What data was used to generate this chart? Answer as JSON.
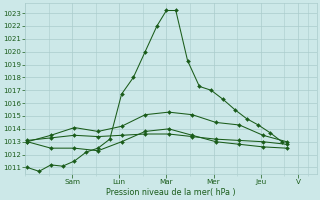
{
  "background_color": "#cce8e8",
  "grid_color": "#aacccc",
  "line_color": "#1a5c1a",
  "ylabel": "Pression niveau de la mer( hPa )",
  "ylim": [
    1010.5,
    1023.8
  ],
  "yticks": [
    1011,
    1012,
    1013,
    1014,
    1015,
    1016,
    1017,
    1018,
    1019,
    1020,
    1021,
    1022,
    1023
  ],
  "day_tick_positions": [
    1.0,
    2.0,
    3.0,
    4.0,
    5.0,
    5.8
  ],
  "day_labels": [
    "Sam",
    "Lun",
    "Mar",
    "Mer",
    "Jeu",
    "V"
  ],
  "xlim": [
    0.0,
    6.2
  ],
  "series1_x": [
    0.05,
    0.3,
    0.55,
    0.8,
    1.05,
    1.3,
    1.55,
    1.8,
    2.05,
    2.3,
    2.55,
    2.8,
    3.0,
    3.2,
    3.45,
    3.7,
    3.95,
    4.2,
    4.45,
    4.7,
    4.95,
    5.2,
    5.45
  ],
  "series1_y": [
    1011.0,
    1010.7,
    1011.2,
    1011.1,
    1011.5,
    1012.2,
    1012.5,
    1013.2,
    1016.7,
    1018.0,
    1020.0,
    1022.0,
    1023.2,
    1023.2,
    1019.3,
    1017.3,
    1017.0,
    1016.3,
    1015.5,
    1014.8,
    1014.3,
    1013.7,
    1013.0
  ],
  "series2_x": [
    0.05,
    0.55,
    1.05,
    1.55,
    2.05,
    2.55,
    3.05,
    3.55,
    4.05,
    4.55,
    5.05,
    5.55
  ],
  "series2_y": [
    1013.0,
    1013.5,
    1014.1,
    1013.8,
    1014.2,
    1015.1,
    1015.3,
    1015.1,
    1014.5,
    1014.3,
    1013.5,
    1013.0
  ],
  "series3_x": [
    0.05,
    0.55,
    1.05,
    1.55,
    2.05,
    2.55,
    3.05,
    3.55,
    4.05,
    4.55,
    5.05,
    5.55
  ],
  "series3_y": [
    1013.1,
    1013.3,
    1013.5,
    1013.4,
    1013.5,
    1013.6,
    1013.6,
    1013.4,
    1013.2,
    1013.1,
    1013.0,
    1012.8
  ],
  "series4_x": [
    0.05,
    0.55,
    1.05,
    1.55,
    2.05,
    2.55,
    3.05,
    3.55,
    4.05,
    4.55,
    5.05,
    5.55
  ],
  "series4_y": [
    1013.0,
    1012.5,
    1012.5,
    1012.3,
    1013.0,
    1013.8,
    1014.0,
    1013.5,
    1013.0,
    1012.8,
    1012.6,
    1012.5
  ]
}
